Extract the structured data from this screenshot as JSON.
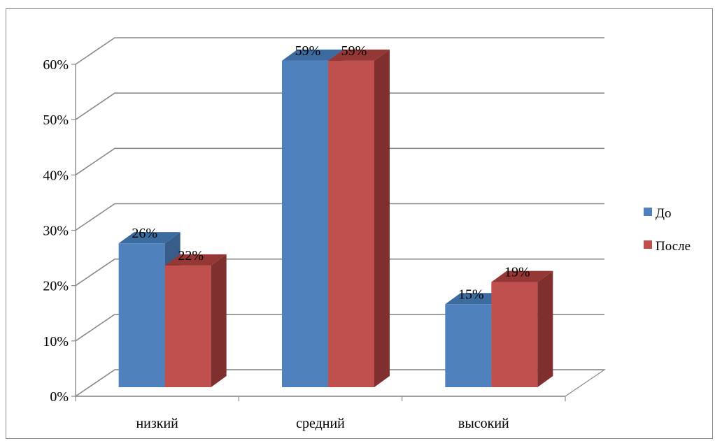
{
  "chart_data": {
    "type": "bar",
    "categories": [
      "низкий",
      "средний",
      "высокий"
    ],
    "series": [
      {
        "name": "До",
        "values": [
          26,
          59,
          15
        ],
        "labels": [
          "26%",
          "59%",
          "15%"
        ],
        "color": "#4f81bd",
        "dark": "#385d8a",
        "top": "#3c6ba0"
      },
      {
        "name": "После",
        "values": [
          22,
          59,
          19
        ],
        "labels": [
          "22%",
          "59%",
          "19%"
        ],
        "color": "#c0504d",
        "dark": "#7f302e",
        "top": "#953735"
      }
    ],
    "ylim": [
      0,
      60
    ],
    "yticks": [
      "0%",
      "10%",
      "20%",
      "30%",
      "40%",
      "50%",
      "60%"
    ],
    "grid": true,
    "legend_position": "right",
    "title": "",
    "xlabel": "",
    "ylabel": ""
  }
}
